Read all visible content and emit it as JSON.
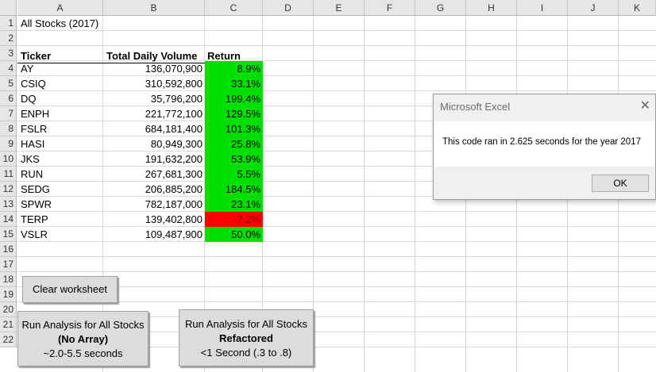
{
  "columns": [
    "A",
    "B",
    "C",
    "D",
    "E",
    "F",
    "G",
    "H",
    "I",
    "J",
    "K"
  ],
  "rows": [
    "1",
    "2",
    "3",
    "4",
    "5",
    "6",
    "7",
    "8",
    "9",
    "10",
    "11",
    "12",
    "13",
    "14",
    "15",
    "16",
    "17",
    "18",
    "19",
    "20",
    "21",
    "22"
  ],
  "sheet_title": "All Stocks (2017)",
  "table": {
    "headers": [
      "Ticker",
      "Total Daily Volume",
      "Return"
    ],
    "rows": [
      {
        "ticker": "AY",
        "volume": "136,070,900",
        "return": "8.9%",
        "status": "positive"
      },
      {
        "ticker": "CSIQ",
        "volume": "310,592,800",
        "return": "33.1%",
        "status": "positive"
      },
      {
        "ticker": "DQ",
        "volume": "35,796,200",
        "return": "199.4%",
        "status": "positive"
      },
      {
        "ticker": "ENPH",
        "volume": "221,772,100",
        "return": "129.5%",
        "status": "positive"
      },
      {
        "ticker": "FSLR",
        "volume": "684,181,400",
        "return": "101.3%",
        "status": "positive"
      },
      {
        "ticker": "HASI",
        "volume": "80,949,300",
        "return": "25.8%",
        "status": "positive"
      },
      {
        "ticker": "JKS",
        "volume": "191,632,200",
        "return": "53.9%",
        "status": "positive"
      },
      {
        "ticker": "RUN",
        "volume": "267,681,300",
        "return": "5.5%",
        "status": "positive"
      },
      {
        "ticker": "SEDG",
        "volume": "206,885,200",
        "return": "184.5%",
        "status": "positive"
      },
      {
        "ticker": "SPWR",
        "volume": "782,187,000",
        "return": "23.1%",
        "status": "positive"
      },
      {
        "ticker": "TERP",
        "volume": "139,402,800",
        "return": "-7.2%",
        "status": "negative"
      },
      {
        "ticker": "VSLR",
        "volume": "109,487,900",
        "return": "50.0%",
        "status": "positive"
      }
    ]
  },
  "colors": {
    "positive": "#00e000",
    "negative": "#ff0000"
  },
  "buttons": {
    "clear": "Clear worksheet",
    "no_array": {
      "line1": "Run Analysis for All Stocks",
      "line2": "(No Array)",
      "line3": "~2.0-5.5 seconds"
    },
    "refactored": {
      "line1": "Run Analysis for All Stocks",
      "line2": "Refactored",
      "line3": "<1 Second (.3 to .8)"
    }
  },
  "dialog": {
    "title": "Microsoft Excel",
    "close_icon": "close-icon",
    "message": "This code ran in 2.625 seconds for the year 2017",
    "ok_label": "OK"
  }
}
